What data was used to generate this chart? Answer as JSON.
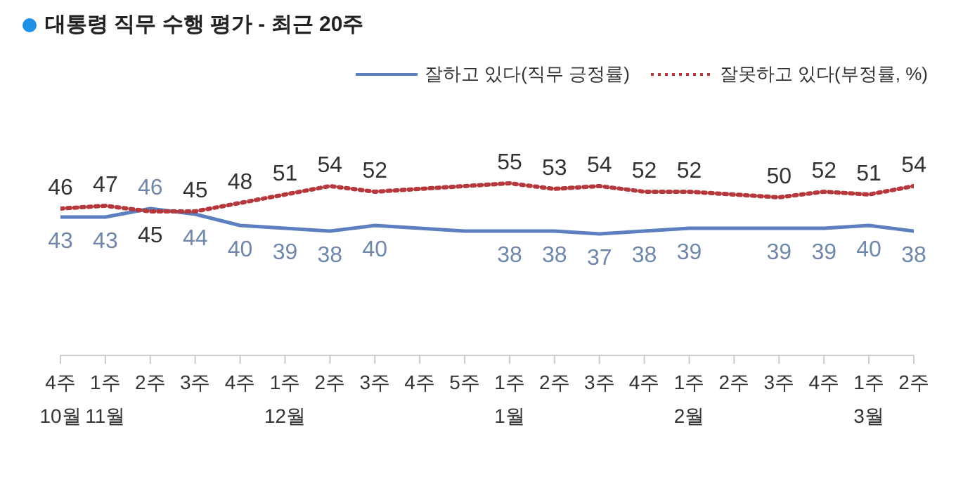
{
  "chart_data": {
    "type": "line",
    "title": "대통령 직무 수행 평가 - 최근 20주",
    "categories": [
      "4주\n10월",
      "1주\n11월",
      "2주",
      "3주",
      "4주",
      "1주\n12월",
      "2주",
      "3주",
      "4주",
      "5주",
      "1주\n1월",
      "2주",
      "3주",
      "4주",
      "1주\n2월",
      "2주",
      "3주",
      "4주",
      "1주\n3월",
      "2주"
    ],
    "series": [
      {
        "name": "잘하고 있다(직무 긍정률)",
        "color": "#5b7fbf",
        "line_style": "solid",
        "values": [
          43,
          43,
          46,
          44,
          40,
          39,
          38,
          40,
          39,
          38,
          38,
          38,
          37,
          38,
          39,
          39,
          39,
          39,
          40,
          38
        ],
        "value_labels": [
          "43",
          "43",
          "46",
          "44",
          "40",
          "39",
          "38",
          "40",
          null,
          null,
          "38",
          "38",
          "37",
          "38",
          "39",
          null,
          "39",
          "39",
          "40",
          "38"
        ]
      },
      {
        "name": "잘못하고 있다(부정률, %)",
        "color": "#b5393c",
        "line_style": "dotted",
        "values": [
          46,
          47,
          45,
          45,
          48,
          51,
          54,
          52,
          53,
          54,
          55,
          53,
          54,
          52,
          52,
          51,
          50,
          52,
          51,
          54
        ],
        "value_labels": [
          "46",
          "47",
          "45",
          "45",
          "48",
          "51",
          "54",
          "52",
          null,
          null,
          "55",
          "53",
          "54",
          "52",
          "52",
          null,
          "50",
          "52",
          "51",
          "54"
        ]
      }
    ],
    "marker": "none",
    "grid": false,
    "legend": "top right"
  }
}
